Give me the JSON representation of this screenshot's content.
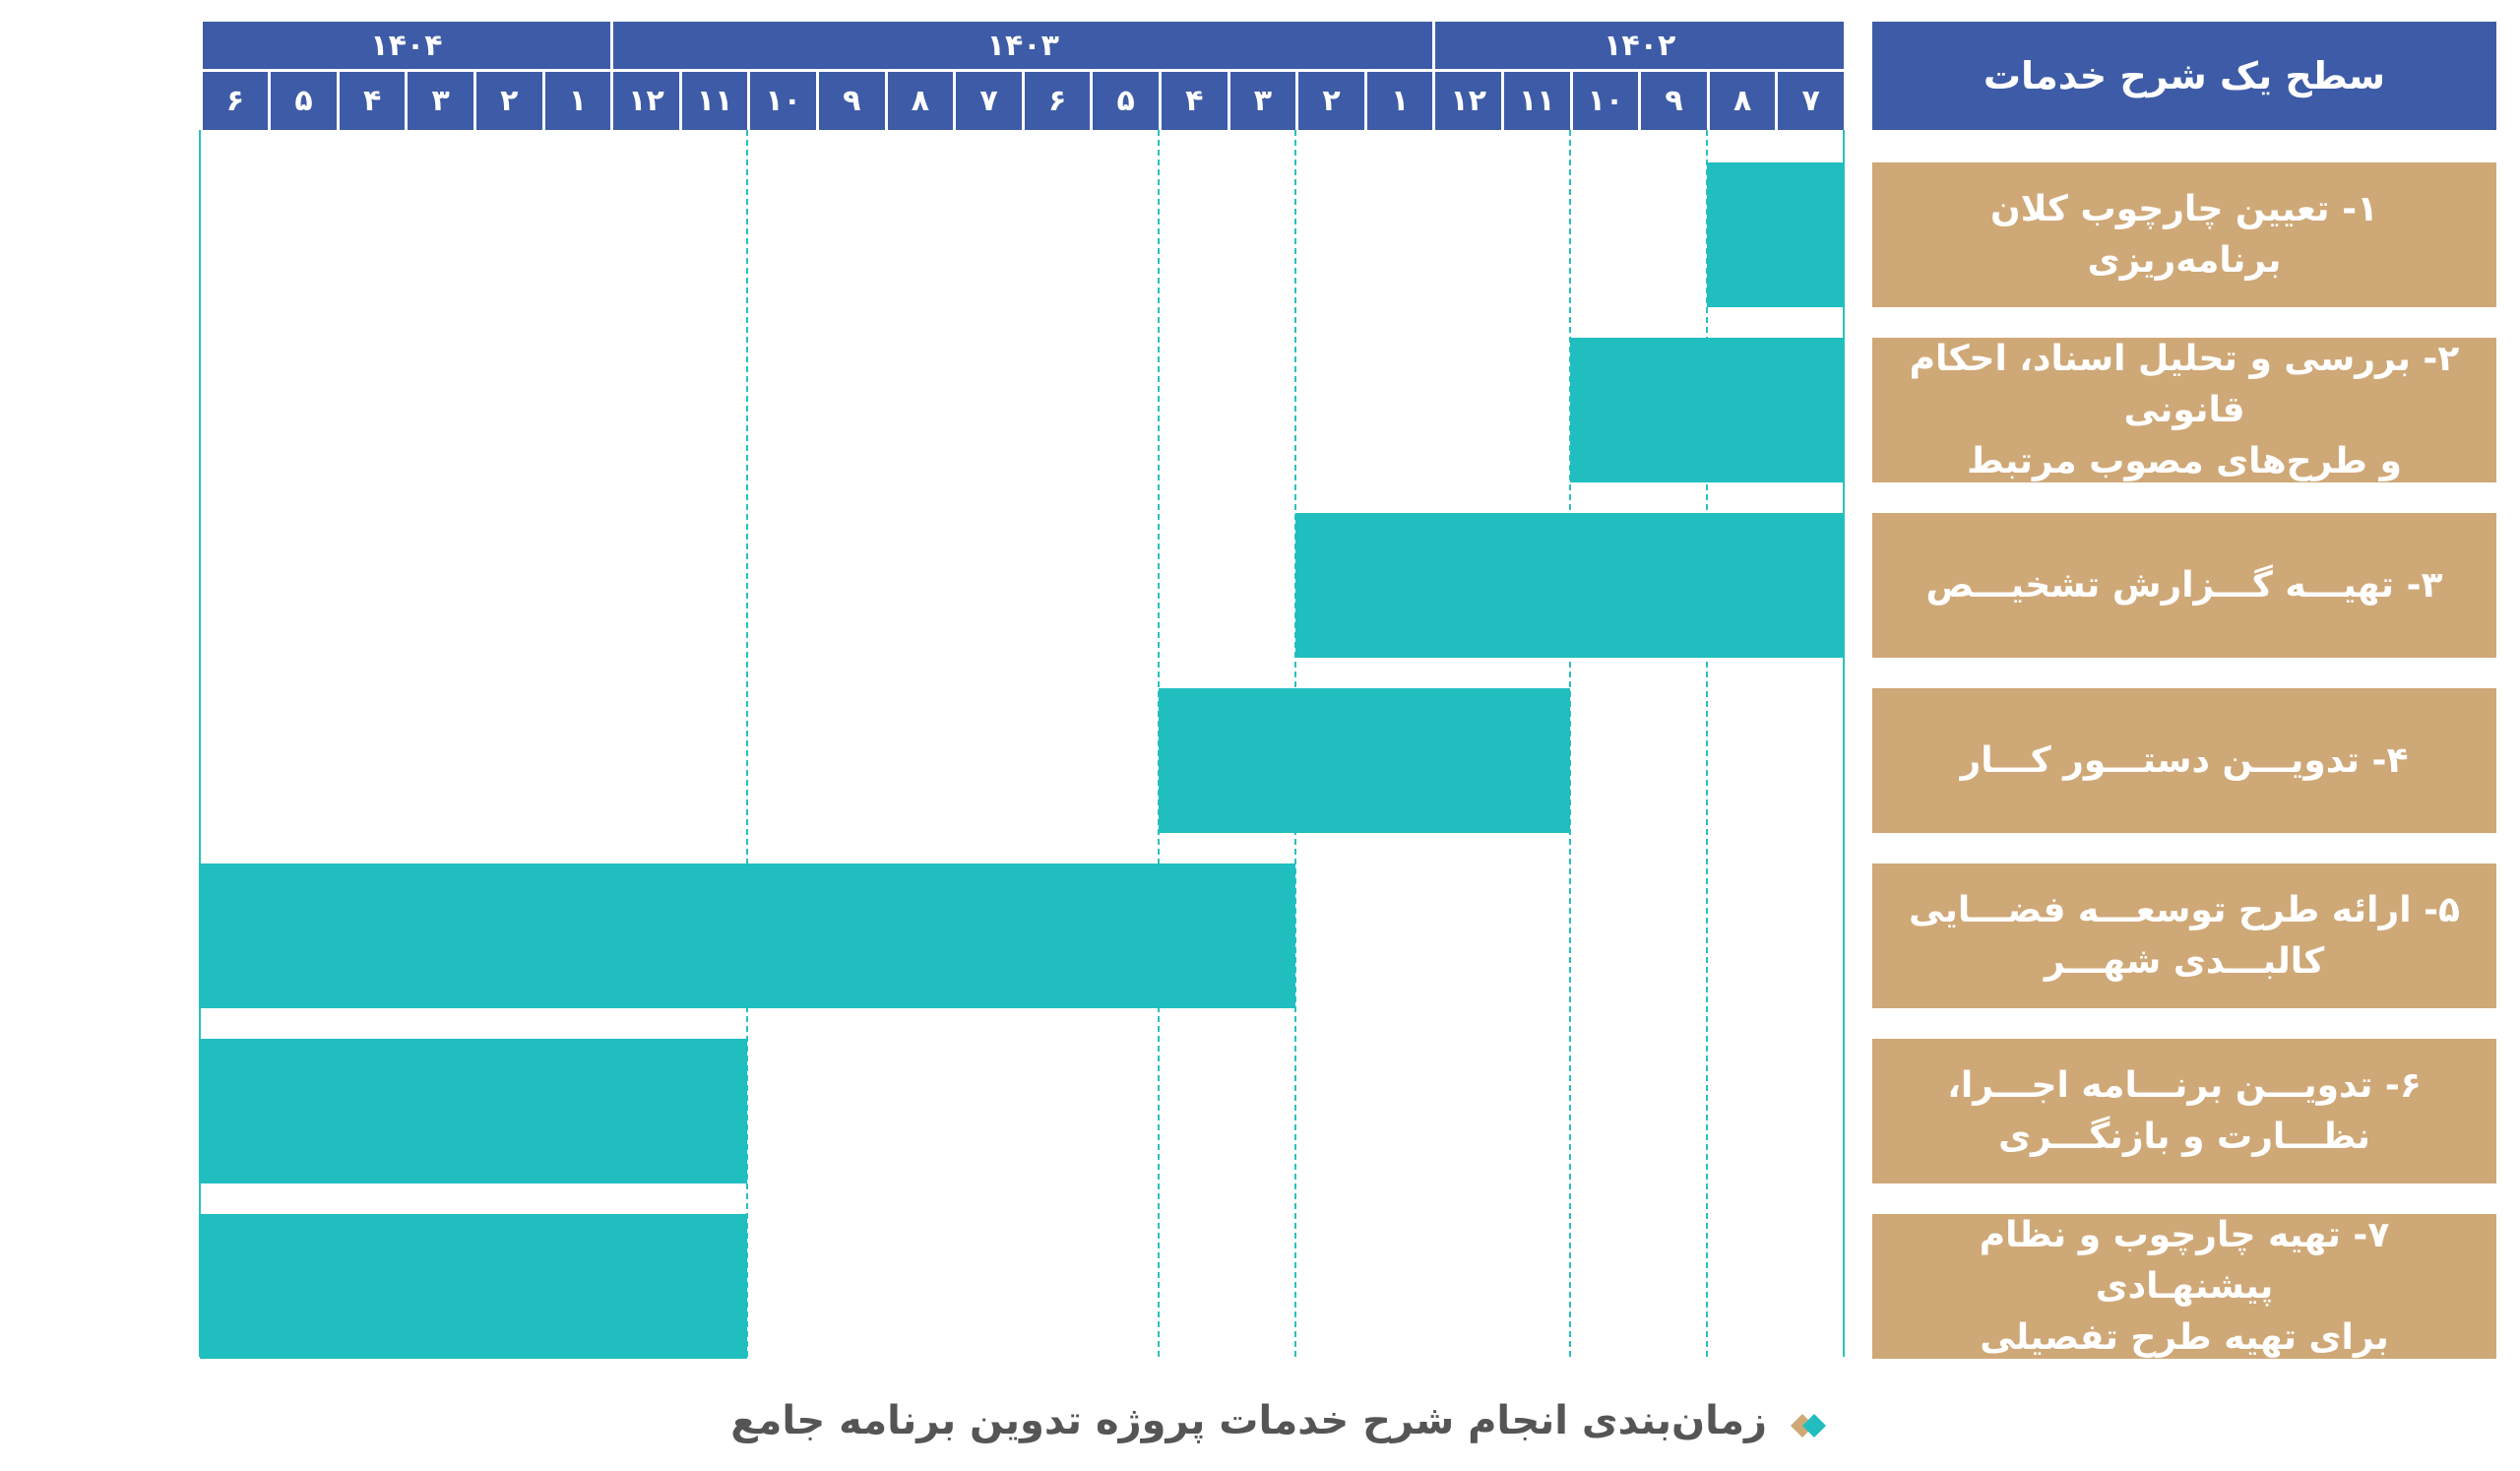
{
  "header_label": "سطح یک شرح خدمات",
  "caption": "زمان‌بندی انجام شرح خدمات پروژه تدوین برنامه جامع",
  "colors": {
    "header": "#3d5ba6",
    "task_label": "#cfa877",
    "bar": "#20bebf",
    "gridline": "#2cc0c0"
  },
  "chart_data": {
    "type": "gantt",
    "years": [
      {
        "label": "۱۴۰۲",
        "months": [
          "۷",
          "۸",
          "۹",
          "۱۰",
          "۱۱",
          "۱۲"
        ]
      },
      {
        "label": "۱۴۰۳",
        "months": [
          "۱",
          "۲",
          "۳",
          "۴",
          "۵",
          "۶",
          "۷",
          "۸",
          "۹",
          "۱۰",
          "۱۱",
          "۱۲"
        ]
      },
      {
        "label": "۱۴۰۴",
        "months": [
          "۱",
          "۲",
          "۳",
          "۴",
          "۵",
          "۶"
        ]
      }
    ],
    "tasks": [
      {
        "label": "۱- تعیین چارچوب کلان برنامه‌ریزی",
        "start": "1402-07",
        "end": "1402-08"
      },
      {
        "label": "۲- بررسی و تحلیل اسناد، احکام قانونی\nو طرح‌های مصوب مرتبط",
        "start": "1402-07",
        "end": "1402-10"
      },
      {
        "label": "۳- تهیـــه گـــزارش تشخیـــص",
        "start": "1402-07",
        "end": "1403-02"
      },
      {
        "label": "۴- تدویـــن دستـــور کـــار",
        "start": "1402-11",
        "end": "1403-04"
      },
      {
        "label": "۵- ارائه طرح توسعـــه فضـــایی\nکالبـــدی شهـــر",
        "start": "1403-03",
        "end": "1404-06"
      },
      {
        "label": "۶- تدویـــن برنـــامه اجـــرا،\nنظـــارت و بازنگـــری",
        "start": "1403-11",
        "end": "1404-06"
      },
      {
        "label": "۷- تهیه چارچوب و نظام پیشنهـادی\nبرای تهیه طرح تفصیلی",
        "start": "1403-11",
        "end": "1404-06"
      }
    ]
  }
}
